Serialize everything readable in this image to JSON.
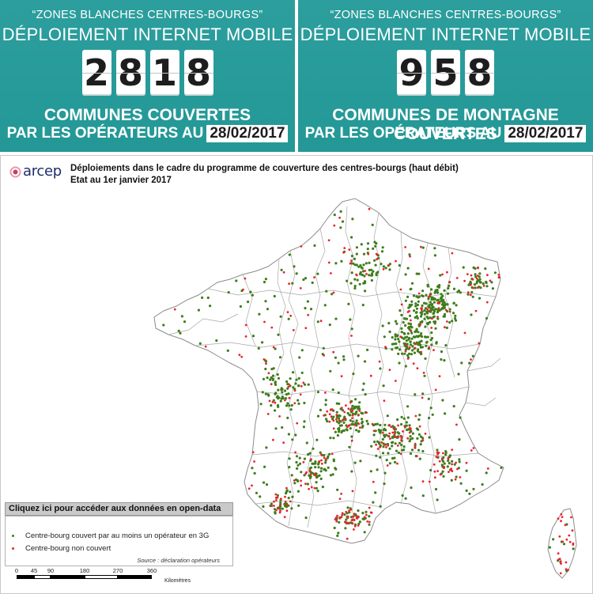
{
  "banners": [
    {
      "quote": "“ZONES BLANCHES CENTRES-BOURGS”",
      "headline": "DÉPLOIEMENT INTERNET MOBILE",
      "digits": [
        "2",
        "8",
        "1",
        "8"
      ],
      "line1": "COMMUNES COUVERTES",
      "line2_prefix": "PAR LES OPÉRATEURS AU",
      "date": "28/02/2017"
    },
    {
      "quote": "“ZONES BLANCHES CENTRES-BOURGS”",
      "headline": "DÉPLOIEMENT INTERNET MOBILE",
      "digits": [
        "9",
        "5",
        "8"
      ],
      "line1": "COMMUNES DE MONTAGNE COUVERTES",
      "line2_prefix": "PAR LES OPÉRATEURS AU",
      "date": "28/02/2017"
    }
  ],
  "map": {
    "logo_text": "arcep",
    "title": "Déploiements dans le cadre du programme de couverture des centres-bourgs (haut débit)",
    "subtitle": "Etat au 1er janvier 2017",
    "opendata_link": "Cliquez ici pour accéder aux données en open-data",
    "legend": {
      "covered_label": "Centre-bourg couvert par au moins un opérateur en 3G",
      "uncovered_label": "Centre-bourg non couvert",
      "source": "Source : déclaration opérateurs"
    },
    "scale": {
      "ticks": [
        "0",
        "45",
        "90",
        "180",
        "270",
        "360"
      ],
      "unit": "Kilomètres"
    },
    "colors": {
      "covered": "#3f7d1c",
      "uncovered": "#e8252f",
      "banner": "#2a9c9b",
      "boundary": "#8c8c8c"
    }
  }
}
